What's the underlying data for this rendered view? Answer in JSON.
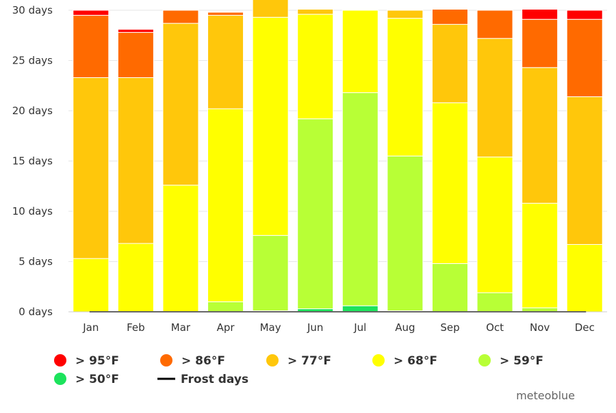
{
  "chart_data": {
    "type": "bar",
    "stacked": true,
    "categories": [
      "Jan",
      "Feb",
      "Mar",
      "Apr",
      "May",
      "Jun",
      "Jul",
      "Aug",
      "Sep",
      "Oct",
      "Nov",
      "Dec"
    ],
    "ylim": [
      0,
      30
    ],
    "yticks": [
      0,
      5,
      10,
      15,
      20,
      25,
      30
    ],
    "ytick_labels": [
      "0 days",
      "5 days",
      "10 days",
      "15 days",
      "20 days",
      "25 days",
      "30 days"
    ],
    "grid": true,
    "legend_position": "bottom",
    "series": [
      {
        "name": "> 50°F",
        "color": "#1ce35c",
        "values": [
          0,
          0,
          0,
          0,
          0.1,
          0.3,
          0.6,
          0.1,
          0,
          0,
          0,
          0
        ]
      },
      {
        "name": "> 59°F",
        "color": "#b8ff36",
        "values": [
          0,
          0,
          0,
          1.0,
          7.5,
          18.9,
          21.2,
          15.4,
          4.8,
          1.9,
          0.4,
          0
        ]
      },
      {
        "name": "> 68°F",
        "color": "#ffff00",
        "values": [
          5.3,
          6.8,
          12.6,
          19.2,
          21.7,
          10.4,
          8.2,
          13.7,
          16.0,
          13.5,
          10.4,
          6.7
        ]
      },
      {
        "name": "> 77°F",
        "color": "#ffc70b",
        "values": [
          18.0,
          16.5,
          16.1,
          9.3,
          2.0,
          0.5,
          0,
          0.8,
          7.8,
          11.8,
          13.5,
          14.7
        ]
      },
      {
        "name": "> 86°F",
        "color": "#ff6a00",
        "values": [
          6.2,
          4.5,
          1.3,
          0.3,
          0,
          0,
          0,
          0,
          1.5,
          2.8,
          4.8,
          7.7
        ]
      },
      {
        "name": "> 95°F",
        "color": "#ff0000",
        "values": [
          0.5,
          0.3,
          0,
          0,
          0,
          0,
          0,
          0,
          0,
          0,
          1.0,
          0.9
        ]
      }
    ],
    "frost_days": {
      "name": "Frost days",
      "color": "#000000",
      "values": [
        0,
        0,
        0,
        0,
        0,
        0,
        0,
        0,
        0,
        0,
        0,
        0
      ]
    },
    "legend_order": [
      "> 95°F",
      "> 86°F",
      "> 77°F",
      "> 68°F",
      "> 59°F",
      "> 50°F",
      "Frost days"
    ]
  },
  "credit": "meteoblue"
}
